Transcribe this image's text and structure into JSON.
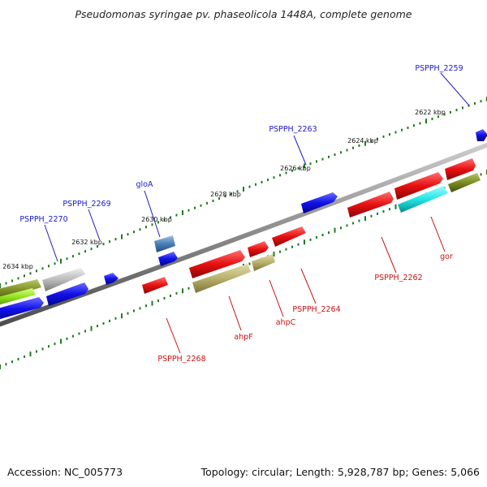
{
  "title": "Pseudomonas syringae pv. phaseolicola 1448A, complete genome",
  "footer": {
    "accession": "Accession: NC_005773",
    "summary": "Topology: circular; Length: 5,928,787 bp; Genes: 5,066"
  },
  "ruler": {
    "ticks": [
      "2622 kbp",
      "2624 kbp",
      "2626 kbp",
      "2628 kbp",
      "2630 kbp",
      "2632 kbp",
      "2634 kbp"
    ]
  },
  "genes": {
    "forward": [
      {
        "label": "PSPPH_2259",
        "color": "#1a1acc"
      },
      {
        "label": "PSPPH_2263",
        "color": "#1a1acc"
      },
      {
        "label": "gloA",
        "color": "#1a1acc"
      },
      {
        "label": "PSPPH_2269",
        "color": "#1a1acc"
      },
      {
        "label": "PSPPH_2270",
        "color": "#1a1acc"
      }
    ],
    "reverse": [
      {
        "label": "gor",
        "color": "#cc1111"
      },
      {
        "label": "PSPPH_2262",
        "color": "#cc1111"
      },
      {
        "label": "PSPPH_2264",
        "color": "#cc1111"
      },
      {
        "label": "ahpC",
        "color": "#cc1111"
      },
      {
        "label": "ahpF",
        "color": "#cc1111"
      },
      {
        "label": "PSPPH_2268",
        "color": "#cc1111"
      }
    ]
  },
  "colors": {
    "forward_cds": "#1010e8",
    "reverse_cds": "#e81010",
    "backbone": "#888888",
    "ruler_dots": "#1f7a1f",
    "cyan_feature": "#22e6e6",
    "olive_feature": "#7a8c22",
    "khaki_feature": "#b8b06a",
    "steel_feature": "#4a7fb5",
    "lime_feature": "#8ee01a",
    "grey_feature": "#bcbcbc"
  }
}
